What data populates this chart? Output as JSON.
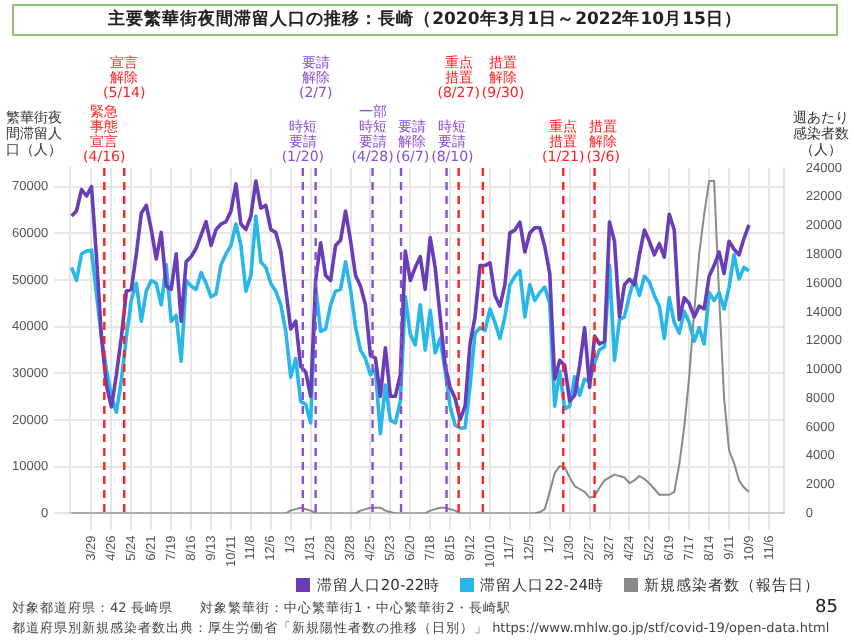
{
  "chart_data": {
    "type": "line",
    "title": "主要繁華街夜間滞留人口の推移：長崎（2020年3月1日～2022年10月15日）",
    "ylabel": "繁華街夜間滞留人口（人）",
    "y2label": "週あたり感染者数（人）",
    "x": [
      "2020-03-01",
      "2020-03-08",
      "2020-03-15",
      "2020-03-22",
      "2020-03-29",
      "2020-04-05",
      "2020-04-12",
      "2020-04-19",
      "2020-04-26",
      "2020-05-03",
      "2020-05-10",
      "2020-05-17",
      "2020-05-24",
      "2020-05-31",
      "2020-06-07",
      "2020-06-14",
      "2020-06-21",
      "2020-06-28",
      "2020-07-05",
      "2020-07-12",
      "2020-07-19",
      "2020-07-26",
      "2020-08-02",
      "2020-08-09",
      "2020-08-16",
      "2020-08-23",
      "2020-08-30",
      "2020-09-06",
      "2020-09-13",
      "2020-09-20",
      "2020-09-27",
      "2020-10-04",
      "2020-10-11",
      "2020-10-18",
      "2020-10-25",
      "2020-11-01",
      "2020-11-08",
      "2020-11-15",
      "2020-11-22",
      "2020-11-29",
      "2020-12-06",
      "2020-12-13",
      "2020-12-20",
      "2020-12-27",
      "2021-01-03",
      "2021-01-10",
      "2021-01-17",
      "2021-01-24",
      "2021-01-31",
      "2021-02-07",
      "2021-02-14",
      "2021-02-21",
      "2021-02-28",
      "2021-03-07",
      "2021-03-14",
      "2021-03-21",
      "2021-03-28",
      "2021-04-04",
      "2021-04-11",
      "2021-04-18",
      "2021-04-25",
      "2021-05-02",
      "2021-05-09",
      "2021-05-16",
      "2021-05-23",
      "2021-05-30",
      "2021-06-06",
      "2021-06-13",
      "2021-06-20",
      "2021-06-27",
      "2021-07-04",
      "2021-07-11",
      "2021-07-18",
      "2021-07-25",
      "2021-08-01",
      "2021-08-08",
      "2021-08-15",
      "2021-08-22",
      "2021-08-29",
      "2021-09-05",
      "2021-09-12",
      "2021-09-19",
      "2021-09-26",
      "2021-10-03",
      "2021-10-10",
      "2021-10-17",
      "2021-10-24",
      "2021-10-31",
      "2021-11-07",
      "2021-11-14",
      "2021-11-21",
      "2021-11-28",
      "2021-12-05",
      "2021-12-12",
      "2021-12-19",
      "2021-12-26",
      "2022-01-02",
      "2022-01-09",
      "2022-01-16",
      "2022-01-23",
      "2022-01-30",
      "2022-02-06",
      "2022-02-13",
      "2022-02-20",
      "2022-02-27",
      "2022-03-06",
      "2022-03-13",
      "2022-03-20",
      "2022-03-27",
      "2022-04-03",
      "2022-04-10",
      "2022-04-17",
      "2022-04-24",
      "2022-05-01",
      "2022-05-08",
      "2022-05-15",
      "2022-05-22",
      "2022-05-29",
      "2022-06-05",
      "2022-06-12",
      "2022-06-19",
      "2022-06-26",
      "2022-07-03",
      "2022-07-10",
      "2022-07-17",
      "2022-07-24",
      "2022-07-31",
      "2022-08-07",
      "2022-08-14",
      "2022-08-21",
      "2022-08-28",
      "2022-09-04",
      "2022-09-11",
      "2022-09-18",
      "2022-09-25",
      "2022-10-02",
      "2022-10-09"
    ],
    "series": [
      {
        "name": "滞留人口20-22時",
        "color": "#6a3db8",
        "values": [
          63700,
          64800,
          69400,
          68000,
          70000,
          55000,
          37800,
          27500,
          22800,
          29700,
          37800,
          47600,
          48000,
          55600,
          64300,
          66000,
          60800,
          54500,
          60200,
          48700,
          48000,
          55600,
          41200,
          53900,
          55000,
          56800,
          59600,
          62500,
          57400,
          60800,
          62000,
          62500,
          64800,
          70600,
          62000,
          60800,
          63700,
          71200,
          65400,
          66000,
          60800,
          60200,
          56200,
          48000,
          39500,
          41200,
          31500,
          30300,
          25100,
          49900,
          58000,
          51000,
          49900,
          57400,
          58500,
          64800,
          58500,
          51000,
          48700,
          44700,
          33800,
          33300,
          25100,
          35500,
          25100,
          25100,
          29700,
          56200,
          49900,
          52700,
          55000,
          48000,
          59100,
          52700,
          42100,
          31700,
          27000,
          24700,
          20100,
          23000,
          36300,
          42100,
          53100,
          53100,
          53700,
          46700,
          44400,
          49000,
          60100,
          60700,
          62400,
          56000,
          60100,
          61200,
          61200,
          57200,
          51400,
          28800,
          32800,
          31700,
          24100,
          25300,
          31700,
          39800,
          27000,
          38000,
          36300,
          36900,
          62400,
          58300,
          42100,
          49000,
          50200,
          49000,
          55400,
          60700,
          58300,
          55400,
          57800,
          54900,
          64100,
          60700,
          41500,
          46200,
          45000,
          42100,
          44400,
          43800,
          50800,
          53100,
          56000,
          51400,
          58300,
          56600,
          55400,
          58900,
          61800
        ]
      },
      {
        "name": "滞留人口22-24時",
        "color": "#29b6e8",
        "values": [
          52700,
          49900,
          55600,
          56200,
          56400,
          47000,
          37800,
          30900,
          25100,
          21700,
          28600,
          37800,
          45800,
          49300,
          41200,
          47600,
          49900,
          49300,
          44700,
          53300,
          41200,
          42400,
          32600,
          49900,
          48700,
          48000,
          51600,
          49300,
          46400,
          47000,
          53300,
          55600,
          57400,
          62000,
          57400,
          47600,
          51000,
          63700,
          53900,
          52700,
          49300,
          47600,
          44700,
          39000,
          29200,
          33200,
          24000,
          23400,
          19400,
          48700,
          39000,
          39500,
          44700,
          47600,
          48000,
          53900,
          48000,
          40100,
          35000,
          33200,
          29700,
          30900,
          17100,
          27500,
          20000,
          19400,
          24000,
          46400,
          38400,
          36100,
          44700,
          35000,
          43500,
          34400,
          37500,
          30500,
          23000,
          18900,
          18300,
          18300,
          27300,
          38600,
          39800,
          39200,
          43800,
          40900,
          37500,
          42100,
          49000,
          50800,
          52000,
          42100,
          49000,
          45600,
          47300,
          48500,
          45000,
          23000,
          30500,
          22400,
          23000,
          29300,
          25300,
          28800,
          28200,
          32200,
          35100,
          35700,
          53100,
          32800,
          41500,
          42100,
          46700,
          50200,
          46700,
          50800,
          49600,
          46700,
          44400,
          37500,
          46200,
          40900,
          38600,
          43300,
          40900,
          36900,
          39800,
          36300,
          47300,
          45600,
          47300,
          43800,
          48500,
          55400,
          50200,
          52700,
          52000
        ]
      },
      {
        "name": "新規感染者数（報告日）",
        "color": "#8a8a8a",
        "axis": "y2",
        "values": [
          0,
          0,
          0,
          0,
          0,
          0,
          0,
          0,
          0,
          0,
          0,
          0,
          0,
          0,
          0,
          0,
          0,
          0,
          0,
          0,
          0,
          0,
          0,
          0,
          0,
          0,
          0,
          0,
          0,
          0,
          0,
          0,
          0,
          0,
          0,
          0,
          0,
          0,
          0,
          0,
          0,
          0,
          0,
          0,
          200,
          300,
          400,
          300,
          200,
          0,
          0,
          0,
          0,
          0,
          0,
          0,
          0,
          0,
          200,
          300,
          400,
          400,
          400,
          200,
          100,
          0,
          0,
          0,
          0,
          0,
          0,
          0,
          200,
          300,
          400,
          400,
          300,
          200,
          0,
          0,
          0,
          0,
          0,
          0,
          0,
          0,
          0,
          0,
          0,
          0,
          0,
          0,
          0,
          0,
          100,
          300,
          1500,
          2800,
          3300,
          3200,
          2500,
          1900,
          1700,
          1500,
          1100,
          1200,
          1800,
          2300,
          2500,
          2700,
          2600,
          2500,
          2100,
          2300,
          2600,
          2400,
          2100,
          1700,
          1300,
          1300,
          1300,
          1500,
          3400,
          6000,
          9500,
          14000,
          18000,
          20800,
          23100,
          23100,
          15200,
          8000,
          4400,
          3500,
          2300,
          1800,
          1500
        ]
      }
    ],
    "xlim": [
      "2020-02-28",
      "2022-11-27"
    ],
    "xticks": [
      {
        "value": "2020-03-29",
        "label": "3/29"
      },
      {
        "value": "2020-04-26",
        "label": "4/26"
      },
      {
        "value": "2020-05-24",
        "label": "5/24"
      },
      {
        "value": "2020-06-21",
        "label": "6/21"
      },
      {
        "value": "2020-07-19",
        "label": "7/19"
      },
      {
        "value": "2020-08-16",
        "label": "8/16"
      },
      {
        "value": "2020-09-13",
        "label": "9/13"
      },
      {
        "value": "2020-10-11",
        "label": "10/11"
      },
      {
        "value": "2020-11-08",
        "label": "11/8"
      },
      {
        "value": "2020-12-06",
        "label": "12/6"
      },
      {
        "value": "2021-01-03",
        "label": "1/3"
      },
      {
        "value": "2021-01-31",
        "label": "1/31"
      },
      {
        "value": "2021-02-28",
        "label": "2/28"
      },
      {
        "value": "2021-03-28",
        "label": "3/28"
      },
      {
        "value": "2021-04-25",
        "label": "4/25"
      },
      {
        "value": "2021-05-23",
        "label": "5/23"
      },
      {
        "value": "2021-06-20",
        "label": "6/20"
      },
      {
        "value": "2021-07-18",
        "label": "7/18"
      },
      {
        "value": "2021-08-15",
        "label": "8/15"
      },
      {
        "value": "2021-09-12",
        "label": "9/12"
      },
      {
        "value": "2021-10-10",
        "label": "10/10"
      },
      {
        "value": "2021-11-07",
        "label": "11/7"
      },
      {
        "value": "2021-12-05",
        "label": "12/5"
      },
      {
        "value": "2022-01-02",
        "label": "1/2"
      },
      {
        "value": "2022-01-30",
        "label": "1/30"
      },
      {
        "value": "2022-02-27",
        "label": "2/27"
      },
      {
        "value": "2022-03-27",
        "label": "3/27"
      },
      {
        "value": "2022-04-24",
        "label": "4/24"
      },
      {
        "value": "2022-05-22",
        "label": "5/22"
      },
      {
        "value": "2022-06-19",
        "label": "6/19"
      },
      {
        "value": "2022-07-17",
        "label": "7/17"
      },
      {
        "value": "2022-08-14",
        "label": "8/14"
      },
      {
        "value": "2022-09-11",
        "label": "9/11"
      },
      {
        "value": "2022-10-09",
        "label": "10/9"
      },
      {
        "value": "2022-11-06",
        "label": "11/6"
      }
    ],
    "ylim": [
      0,
      74000
    ],
    "yticks": [
      0,
      10000,
      20000,
      30000,
      40000,
      50000,
      60000,
      70000
    ],
    "y2lim": [
      0,
      24000
    ],
    "y2ticks": [
      0,
      2000,
      4000,
      6000,
      8000,
      10000,
      12000,
      14000,
      16000,
      18000,
      20000,
      22000,
      24000
    ],
    "grid": true,
    "legend": "bottom",
    "ref_lines": [
      {
        "axis": "x",
        "value": "2020-04-16",
        "label": "緊急事態宣言(4/16)",
        "color": "#ff2020",
        "line_style": "dashed"
      },
      {
        "axis": "x",
        "value": "2020-05-14",
        "label": "宣言解除(5/14)",
        "color": "#ff2020",
        "line_style": "dashed"
      },
      {
        "axis": "x",
        "value": "2021-01-20",
        "label": "時短要請(1/20)",
        "color": "#8a4fd0",
        "line_style": "dashed"
      },
      {
        "axis": "x",
        "value": "2021-02-07",
        "label": "要請解除(2/7)",
        "color": "#8a4fd0",
        "line_style": "dashed"
      },
      {
        "axis": "x",
        "value": "2021-04-28",
        "label": "一部時短要請(4/28)",
        "color": "#8a4fd0",
        "line_style": "dashed"
      },
      {
        "axis": "x",
        "value": "2021-06-07",
        "label": "要請解除(6/7)",
        "color": "#8a4fd0",
        "line_style": "dashed"
      },
      {
        "axis": "x",
        "value": "2021-08-10",
        "label": "時短要請(8/10)",
        "color": "#8a4fd0",
        "line_style": "dashed"
      },
      {
        "axis": "x",
        "value": "2021-08-27",
        "label": "重点措置(8/27)",
        "color": "#ff2020",
        "line_style": "dashed"
      },
      {
        "axis": "x",
        "value": "2021-09-30",
        "label": "措置解除(9/30)",
        "color": "#ff2020",
        "line_style": "dashed"
      },
      {
        "axis": "x",
        "value": "2022-01-21",
        "label": "重点措置(1/21)",
        "color": "#ff2020",
        "line_style": "dashed"
      },
      {
        "axis": "x",
        "value": "2022-03-06",
        "label": "措置解除(3/6)",
        "color": "#ff2020",
        "line_style": "dashed"
      }
    ],
    "annotations": [
      "対象都道府県：42 長崎県",
      "対象繁華街：中心繁華街1・中心繁華街2・長崎駅",
      "都道府県別新規感染者数出典：厚生労働省「新規陽性者数の推移（日別）」 https://www.mhlw.go.jp/stf/covid-19/open-data.html",
      "85"
    ]
  }
}
